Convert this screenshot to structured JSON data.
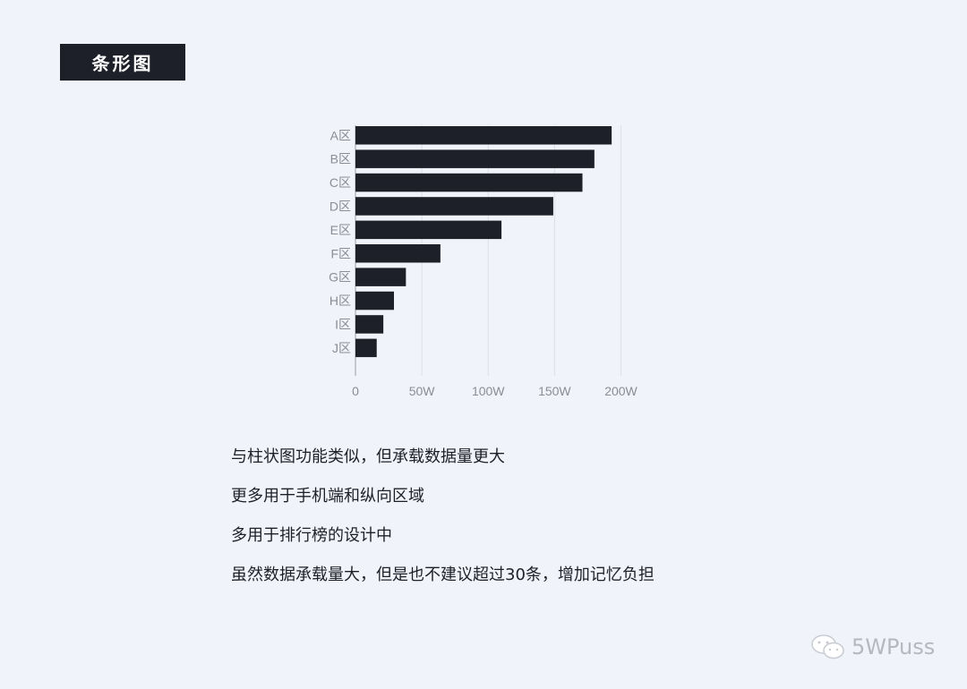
{
  "header": {
    "title": "条形图"
  },
  "chart_data": {
    "type": "bar",
    "orientation": "horizontal",
    "title": "",
    "xlabel": "",
    "ylabel": "",
    "categories": [
      "A区",
      "B区",
      "C区",
      "D区",
      "E区",
      "F区",
      "G区",
      "H区",
      "I区",
      "J区"
    ],
    "values": [
      193,
      180,
      171,
      149,
      110,
      64,
      38,
      29,
      21,
      16
    ],
    "unit": "W",
    "xlim": [
      0,
      200
    ],
    "x_ticks": [
      0,
      50,
      100,
      150,
      200
    ],
    "x_tick_labels": [
      "0",
      "50W",
      "100W",
      "150W",
      "200W"
    ],
    "grid": "vertical",
    "bar_color": "#1e2029",
    "grid_color": "#dde0e8",
    "label_color": "#8a8d94"
  },
  "notes": [
    "与柱状图功能类似，但承载数据量更大",
    "更多用于手机端和纵向区域",
    "多用于排行榜的设计中",
    "虽然数据承载量大，但是也不建议超过30条，增加记忆负担"
  ],
  "watermark": {
    "text": "5WPuss",
    "icon": "wechat-icon"
  }
}
